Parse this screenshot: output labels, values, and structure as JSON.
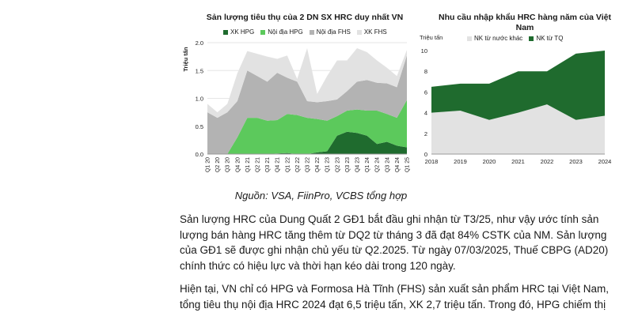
{
  "chart_data": [
    {
      "type": "area",
      "title": "Sản lượng tiêu thụ của 2 DN SX HRC duy nhất VN",
      "ylabel": "Triệu tấn",
      "ylim": [
        0,
        2.0
      ],
      "yticks": [
        "0.0",
        "0.5",
        "1.0",
        "1.5",
        "2.0"
      ],
      "categories": [
        "Q1 20",
        "Q2 20",
        "Q3 20",
        "Q4 20",
        "Q1 21",
        "Q2 21",
        "Q3 21",
        "Q4 21",
        "Q1 22",
        "Q2 22",
        "Q3 22",
        "Q4 22",
        "Q1 23",
        "Q2 23",
        "Q3 23",
        "Q4 23",
        "Q1 24",
        "Q2 24",
        "Q3 24",
        "Q4 24",
        "Q1 25"
      ],
      "stacked": true,
      "series": [
        {
          "name": "XK HPG",
          "color": "#1f6b2e",
          "values": [
            0,
            0,
            0,
            0,
            0,
            0,
            0,
            0.01,
            0.02,
            0,
            0,
            0.03,
            0.05,
            0.33,
            0.4,
            0.38,
            0.33,
            0.18,
            0.22,
            0.15,
            0.12
          ]
        },
        {
          "name": "Nội địa HPG",
          "color": "#5cc95c",
          "values": [
            0,
            0,
            0,
            0.3,
            0.65,
            0.65,
            0.6,
            0.6,
            0.7,
            0.7,
            0.65,
            0.6,
            0.55,
            0.35,
            0.38,
            0.42,
            0.45,
            0.6,
            0.5,
            0.5,
            0.85
          ]
        },
        {
          "name": "Nội địa FHS",
          "color": "#b3b3b3",
          "values": [
            0.75,
            0.65,
            0.75,
            0.65,
            0.85,
            0.75,
            0.7,
            0.85,
            0.65,
            0.6,
            0.3,
            0.3,
            0.35,
            0.3,
            0.35,
            0.5,
            0.55,
            0.5,
            0.55,
            0.55,
            0.8
          ]
        },
        {
          "name": "XK FHS",
          "color": "#e2e2e2",
          "values": [
            0.15,
            0.1,
            0.15,
            0.5,
            0.35,
            0.4,
            0.45,
            0.25,
            0.4,
            0.05,
            0.95,
            0.15,
            0.45,
            0.7,
            0.55,
            0.6,
            0.5,
            0.4,
            0.28,
            0.2,
            0.1
          ]
        }
      ]
    },
    {
      "type": "area",
      "title": "Nhu cầu nhập khẩu HRC hàng năm của Việt Nam",
      "ylabel": "Triệu tấn",
      "ylim": [
        0,
        10
      ],
      "yticks": [
        "0",
        "2",
        "4",
        "6",
        "8",
        "10"
      ],
      "categories": [
        "2018",
        "2019",
        "2020",
        "2021",
        "2022",
        "2023",
        "2024"
      ],
      "stacked": true,
      "series": [
        {
          "name": "NK từ nước khác",
          "color": "#e2e2e2",
          "values": [
            4.0,
            4.2,
            3.3,
            4.0,
            4.8,
            3.3,
            3.7
          ]
        },
        {
          "name": "NK từ TQ",
          "color": "#1f6b2e",
          "values": [
            2.5,
            2.6,
            3.5,
            4.0,
            3.2,
            6.4,
            6.3
          ]
        }
      ]
    }
  ],
  "source": "Nguồn: VSA, FiinPro, VCBS tổng hợp",
  "paragraphs": [
    "Sản lượng HRC của Dung Quất 2 GĐ1 bắt đầu ghi nhận từ T3/25, như vậy ước tính sản lượng bán hàng HRC tăng thêm từ DQ2 từ tháng 3 đã đạt 84% CSTK của NM. Sản lượng của GĐ1 sẽ được ghi nhận chủ yếu từ Q2.2025. Từ ngày 07/03/2025, Thuế CBPG (AD20) chính thức có hiệu lực và thời hạn kéo dài trong 120 ngày.",
    "Hiện tại, VN chỉ có HPG và Formosa Hà Tĩnh (FHS) sản xuất sản phẩm HRC tại Việt Nam, tổng tiêu thụ nội địa HRC 2024 đạt 6,5 triệu tấn, XK 2,7 triệu tấn. Trong đó, HPG chiếm thị"
  ]
}
